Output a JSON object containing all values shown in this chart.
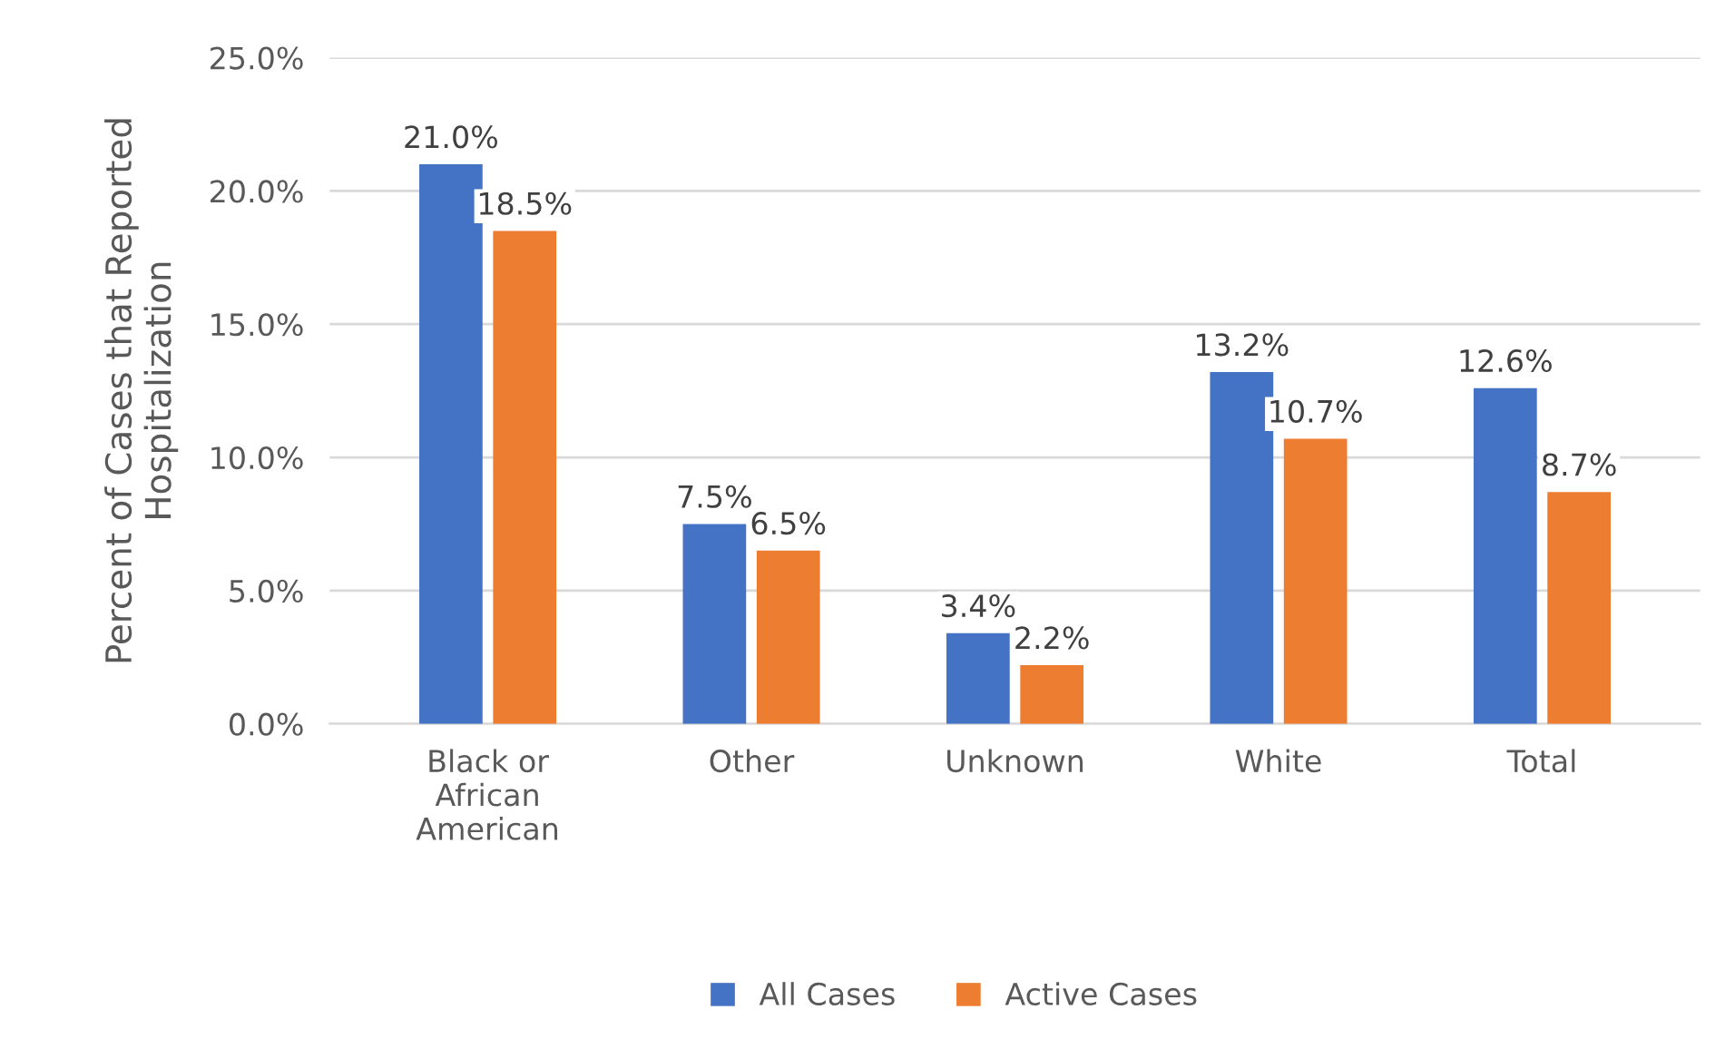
{
  "chart_data": {
    "type": "bar",
    "ylabel": "Percent of Cases that Reported\nHospitalization",
    "categories": [
      "Black or\nAfrican\nAmerican",
      "Other",
      "Unknown",
      "White",
      "Total"
    ],
    "series": [
      {
        "name": "All Cases",
        "color": "#4472c4",
        "values": [
          21.0,
          7.5,
          3.4,
          13.2,
          12.6
        ],
        "value_labels": [
          "21.0%",
          "7.5%",
          "3.4%",
          "13.2%",
          "12.6%"
        ]
      },
      {
        "name": "Active Cases",
        "color": "#ed7d31",
        "values": [
          18.5,
          6.5,
          2.2,
          10.7,
          8.7
        ],
        "value_labels": [
          "18.5%",
          "6.5%",
          "2.2%",
          "10.7%",
          "8.7%"
        ]
      }
    ],
    "ylim": [
      0,
      25
    ],
    "yticks": [
      {
        "value": 0,
        "label": "0.0%"
      },
      {
        "value": 5,
        "label": "5.0%"
      },
      {
        "value": 10,
        "label": "10.0%"
      },
      {
        "value": 15,
        "label": "15.0%"
      },
      {
        "value": 20,
        "label": "20.0%"
      },
      {
        "value": 25,
        "label": "25.0%"
      }
    ],
    "grid": "y",
    "legend": "bottom"
  }
}
